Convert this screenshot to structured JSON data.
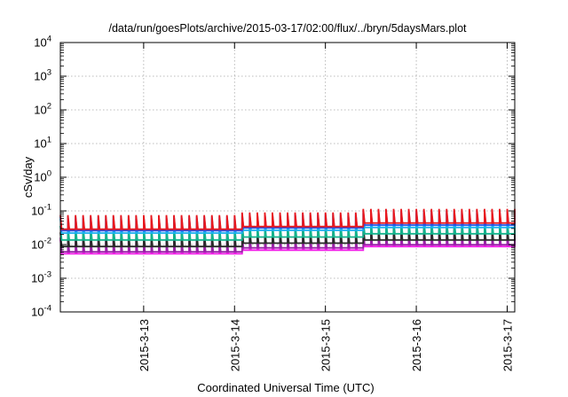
{
  "chart_data": {
    "type": "line",
    "title": "/data/run/goesPlots/archive/2015-03-17/02:00/flux/../bryn/5daysMars.plot",
    "xlabel": "Coordinated Universal Time (UTC)",
    "ylabel": "cSv/day",
    "yscale": "log",
    "ylim": [
      0.0001,
      10000
    ],
    "yticks": [
      {
        "base": "10",
        "exp": "-4"
      },
      {
        "base": "10",
        "exp": "-3"
      },
      {
        "base": "10",
        "exp": "-2"
      },
      {
        "base": "10",
        "exp": "-1"
      },
      {
        "base": "10",
        "exp": "0"
      },
      {
        "base": "10",
        "exp": "1"
      },
      {
        "base": "10",
        "exp": "2"
      },
      {
        "base": "10",
        "exp": "3"
      },
      {
        "base": "10",
        "exp": "4"
      }
    ],
    "xlim": [
      "2015-03-12T02:00",
      "2015-03-17T02:00"
    ],
    "xticks": [
      "2015-3-13",
      "2015-3-14",
      "2015-3-15",
      "2015-3-16",
      "2015-3-17"
    ],
    "grid": true,
    "legend": "none",
    "sawtooth_period_hours": 2,
    "segments": [
      {
        "from": "2015-03-12T02:00",
        "to": "2015-03-14T02:00",
        "series_peaks": [
          0.075,
          0.068,
          0.058,
          0.036,
          0.023,
          0.016,
          0.014
        ]
      },
      {
        "from": "2015-03-14T02:00",
        "to": "2015-03-15T09:00",
        "series_peaks": [
          0.09,
          0.082,
          0.07,
          0.044,
          0.029,
          0.021,
          0.018
        ]
      },
      {
        "from": "2015-03-15T09:00",
        "to": "2015-03-17T02:00",
        "series_peaks": [
          0.115,
          0.1,
          0.085,
          0.055,
          0.036,
          0.026,
          0.023
        ]
      }
    ],
    "series_trough_ratio": 0.38,
    "series_colors": [
      "#e8181e",
      "#2255e8",
      "#19aff0",
      "#13b38c",
      "#2a2a2a",
      "#9a23a8",
      "#f21ee8"
    ]
  }
}
